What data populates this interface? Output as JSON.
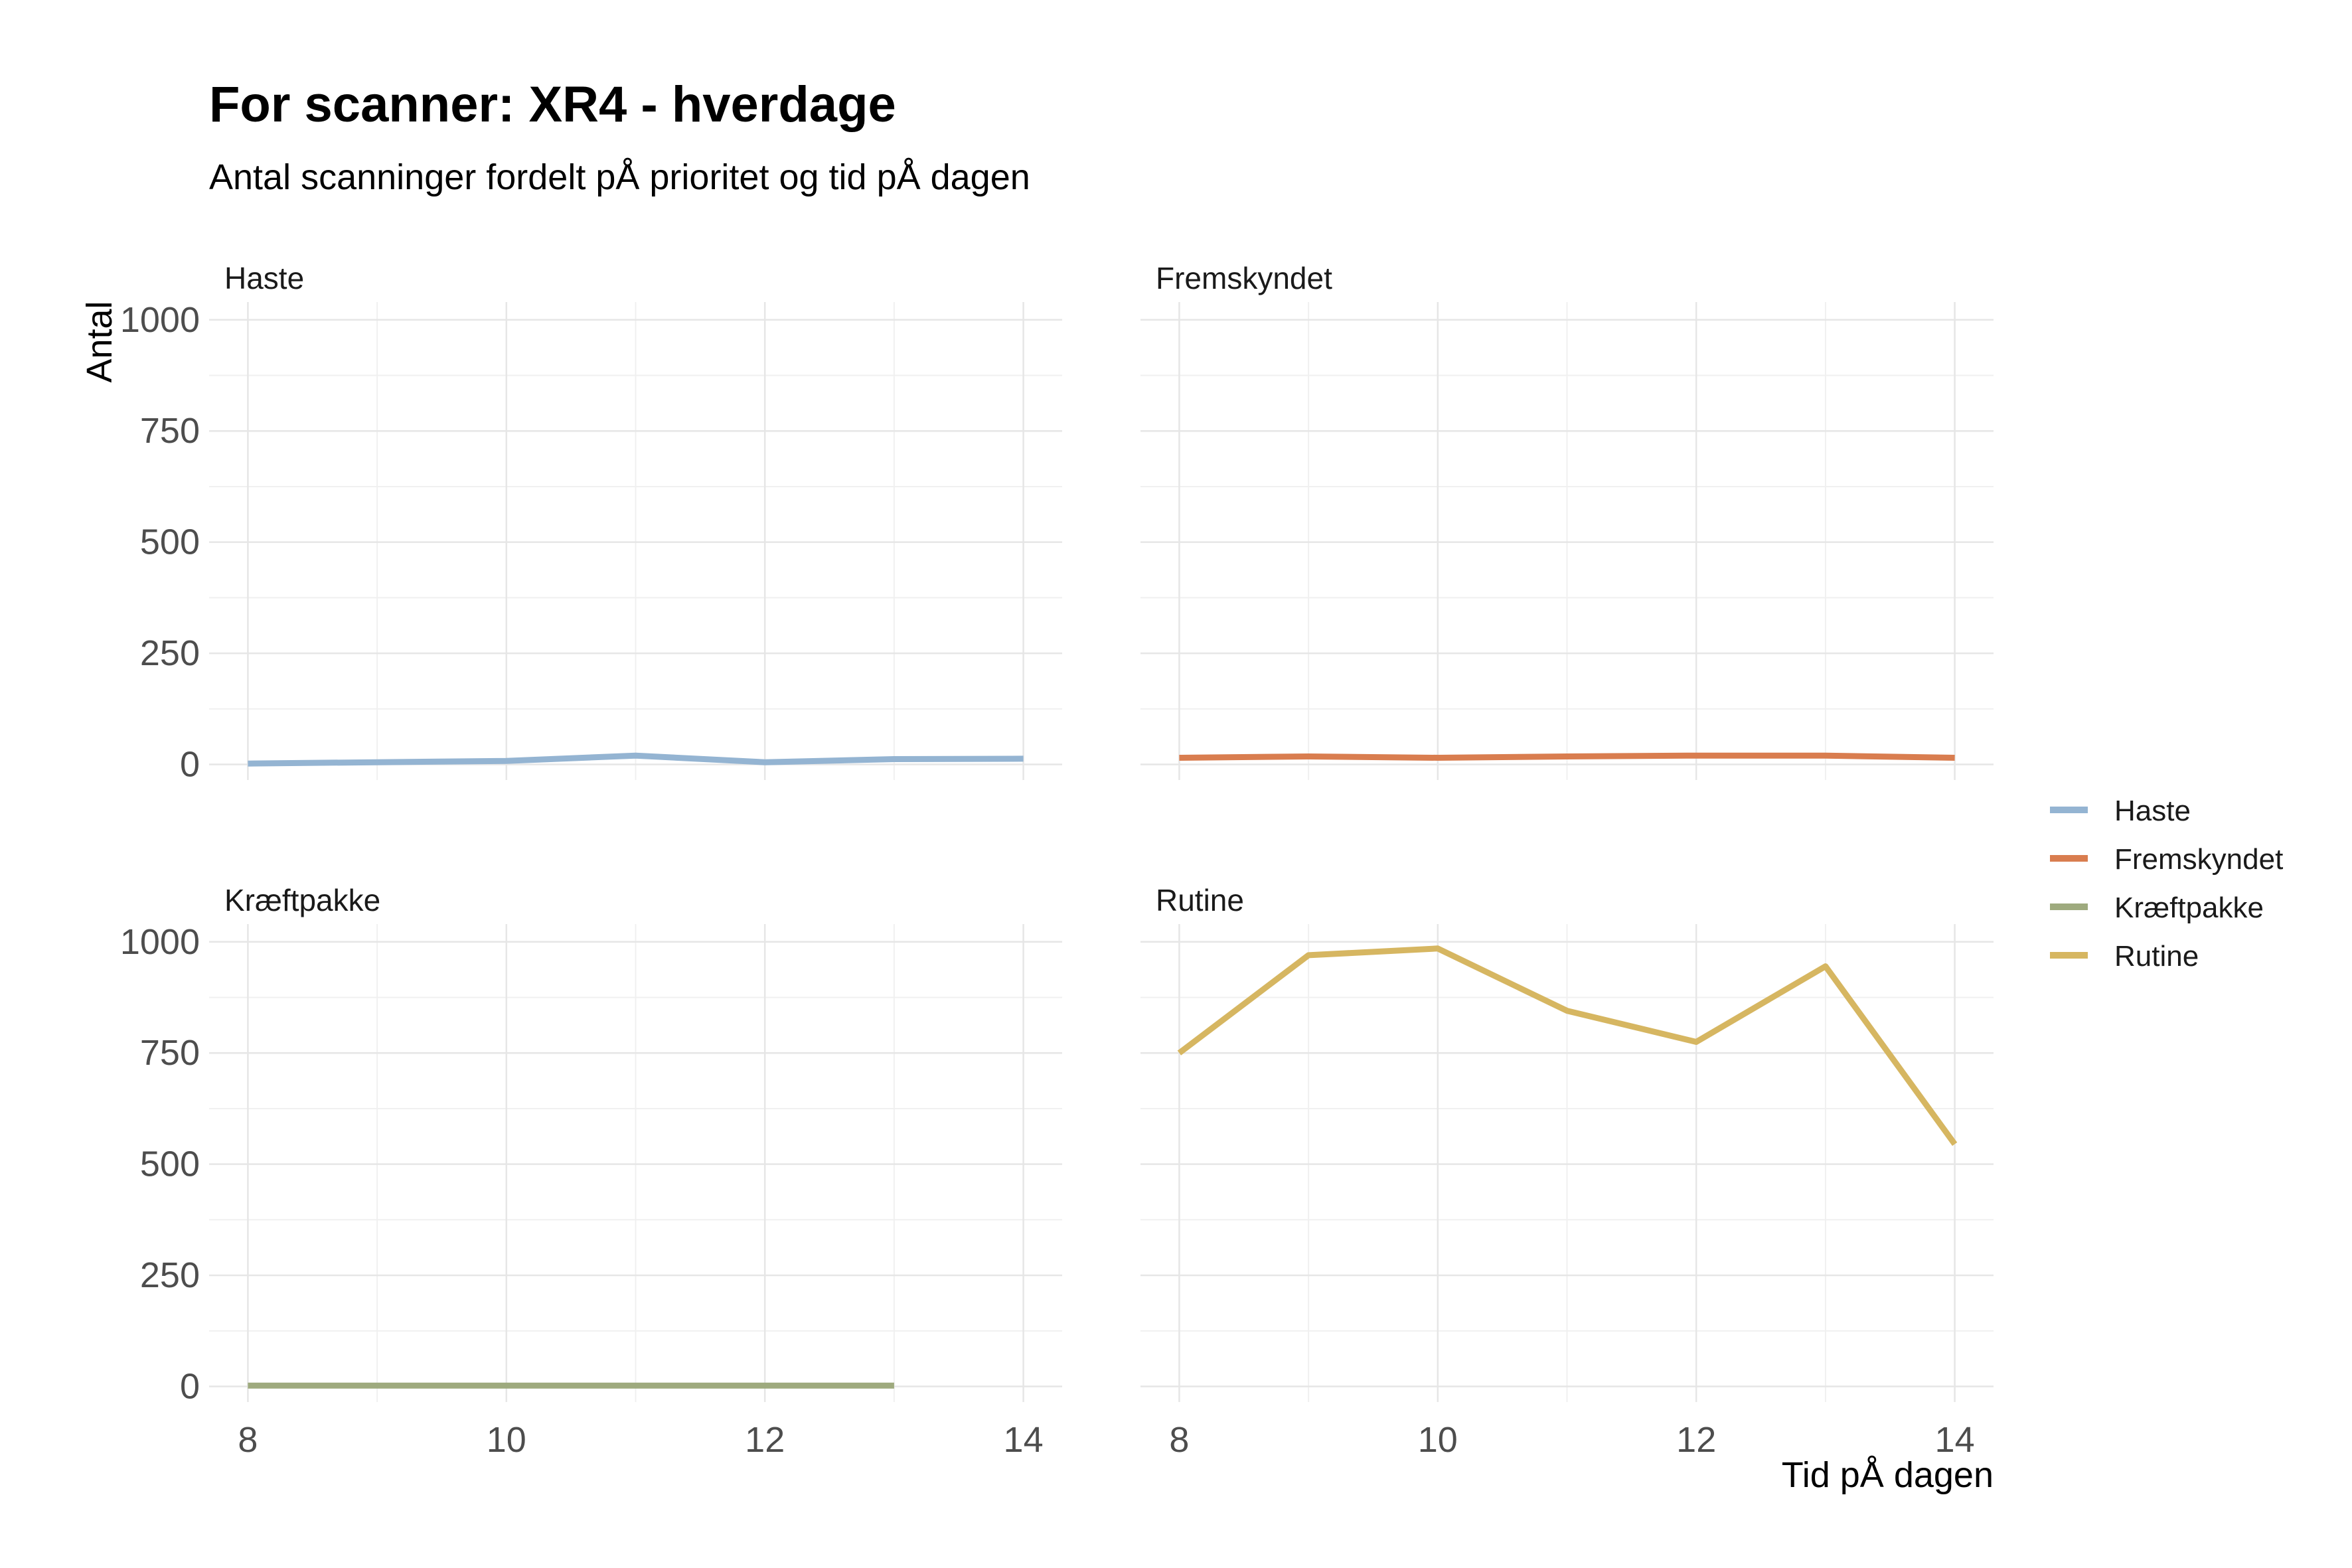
{
  "chart_data": {
    "type": "line",
    "title": "For scanner: XR4 - hverdage",
    "subtitle": "Antal scanninger fordelt pÅ prioritet og tid pÅ dagen",
    "xlabel": "Tid pÅ dagen",
    "ylabel": "Antal",
    "xlim": [
      7.7,
      14.3
    ],
    "ylim": [
      -35,
      1040
    ],
    "x_ticks": [
      8,
      10,
      12,
      14
    ],
    "y_ticks": [
      0,
      250,
      500,
      750,
      1000
    ],
    "grid": true,
    "legend_position": "right",
    "panels": [
      {
        "name": "Haste",
        "color": "#94b4d2",
        "x": [
          8,
          9,
          10,
          11,
          12,
          13,
          14
        ],
        "y": [
          2,
          5,
          8,
          20,
          5,
          12,
          13
        ]
      },
      {
        "name": "Fremskyndet",
        "color": "#d97d4f",
        "x": [
          8,
          9,
          10,
          11,
          12,
          13,
          14
        ],
        "y": [
          15,
          18,
          15,
          18,
          20,
          20,
          15
        ]
      },
      {
        "name": "Kræftpakke",
        "color": "#9eaa7e",
        "x": [
          8,
          9,
          10,
          11,
          12,
          13
        ],
        "y": [
          2,
          2,
          2,
          2,
          2,
          2
        ]
      },
      {
        "name": "Rutine",
        "color": "#d6b661",
        "x": [
          8,
          9,
          10,
          11,
          12,
          13,
          14
        ],
        "y": [
          750,
          970,
          985,
          845,
          775,
          945,
          545
        ]
      }
    ]
  }
}
